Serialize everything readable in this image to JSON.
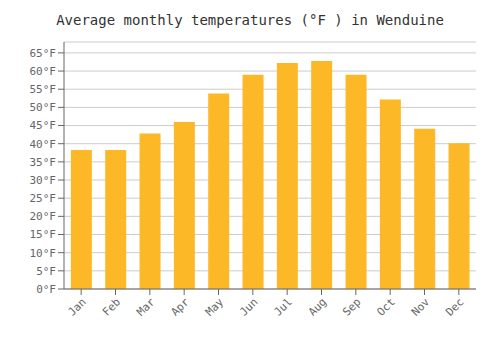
{
  "chart_data": {
    "type": "bar",
    "title": "Average monthly temperatures (°F ) in Wenduine",
    "categories": [
      "Jan",
      "Feb",
      "Mar",
      "Apr",
      "May",
      "Jun",
      "Jul",
      "Aug",
      "Sep",
      "Oct",
      "Nov",
      "Dec"
    ],
    "values": [
      38.3,
      38.3,
      42.8,
      46.0,
      53.8,
      59.0,
      62.2,
      62.8,
      59.0,
      52.2,
      44.1,
      40.1
    ],
    "color": "#FDB827",
    "ylim": [
      0,
      68
    ],
    "yticks": [
      {
        "value": 0,
        "label": "0°F"
      },
      {
        "value": 5,
        "label": "5°F"
      },
      {
        "value": 10,
        "label": "10°F"
      },
      {
        "value": 15,
        "label": "15°F"
      },
      {
        "value": 20,
        "label": "20°F"
      },
      {
        "value": 25,
        "label": "25°F"
      },
      {
        "value": 30,
        "label": "30°F"
      },
      {
        "value": 35,
        "label": "35°F"
      },
      {
        "value": 40,
        "label": "40°F"
      },
      {
        "value": 45,
        "label": "45°F"
      },
      {
        "value": 50,
        "label": "50°F"
      },
      {
        "value": 55,
        "label": "55°F"
      },
      {
        "value": 60,
        "label": "60°F"
      },
      {
        "value": 65,
        "label": "65°F"
      }
    ],
    "grid": true
  }
}
